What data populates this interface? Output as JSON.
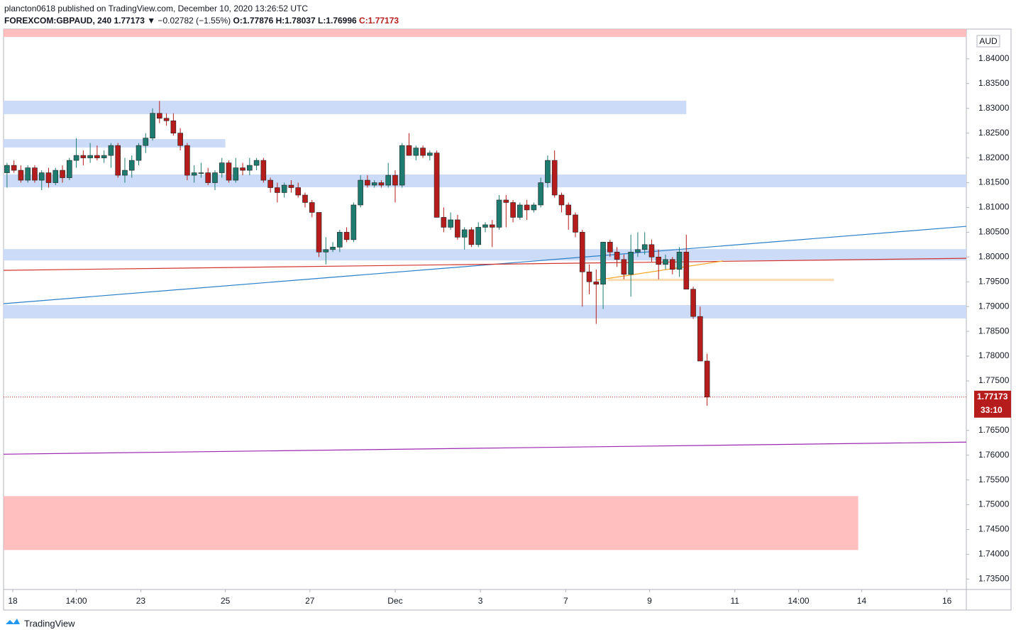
{
  "header": {
    "publisher": "plancton0618 published on TradingView.com, December 10, 2020 13:26:52 UTC",
    "symbol": "FOREXCOM:GBPAUD, 240",
    "last": "1.77173",
    "change": "▼ −0.02782 (−1.55%)",
    "open": "O:1.77876",
    "high": "H:1.78037",
    "low": "L:1.76996",
    "close": "C:1.77173"
  },
  "footer": {
    "brand": "TradingView"
  },
  "chart_data": {
    "type": "candlestick",
    "currency": "AUD",
    "last_price": 1.77173,
    "countdown": "33:10",
    "up_color": "#1e7b70",
    "down_color": "#b71c1c",
    "xlim": [
      -0.5,
      138.4
    ],
    "ylim": [
      1.7329,
      1.846
    ],
    "xticks": [
      {
        "value": 0.83,
        "label": "18"
      },
      {
        "value": 10.0,
        "label": "14:00"
      },
      {
        "value": 19.3,
        "label": "23"
      },
      {
        "value": 31.5,
        "label": "25"
      },
      {
        "value": 43.7,
        "label": "27"
      },
      {
        "value": 56.0,
        "label": "Dec"
      },
      {
        "value": 68.3,
        "label": "3"
      },
      {
        "value": 80.6,
        "label": "7"
      },
      {
        "value": 92.7,
        "label": "9"
      },
      {
        "value": 105.0,
        "label": "11"
      },
      {
        "value": 114.2,
        "label": "14:00"
      },
      {
        "value": 123.3,
        "label": "14"
      },
      {
        "value": 135.6,
        "label": "16"
      }
    ],
    "yticks": [
      {
        "value": 1.735,
        "label": "1.73500"
      },
      {
        "value": 1.74,
        "label": "1.74000"
      },
      {
        "value": 1.745,
        "label": "1.74500"
      },
      {
        "value": 1.75,
        "label": "1.75000"
      },
      {
        "value": 1.755,
        "label": "1.75500"
      },
      {
        "value": 1.76,
        "label": "1.76000"
      },
      {
        "value": 1.765,
        "label": "1.76500"
      },
      {
        "value": 1.775,
        "label": "1.77500"
      },
      {
        "value": 1.78,
        "label": "1.78000"
      },
      {
        "value": 1.785,
        "label": "1.78500"
      },
      {
        "value": 1.79,
        "label": "1.79000"
      },
      {
        "value": 1.795,
        "label": "1.79500"
      },
      {
        "value": 1.8,
        "label": "1.80000"
      },
      {
        "value": 1.805,
        "label": "1.80500"
      },
      {
        "value": 1.81,
        "label": "1.81000"
      },
      {
        "value": 1.815,
        "label": "1.81500"
      },
      {
        "value": 1.82,
        "label": "1.82000"
      },
      {
        "value": 1.825,
        "label": "1.82500"
      },
      {
        "value": 1.83,
        "label": "1.83000"
      },
      {
        "value": 1.835,
        "label": "1.83500"
      },
      {
        "value": 1.84,
        "label": "1.84000"
      }
    ],
    "zones": [
      {
        "top": 1.846,
        "bottom": 1.8444,
        "x_end": 138.4,
        "color": "#ffbcbc"
      },
      {
        "top": 1.83155,
        "bottom": 1.82883,
        "x_end": 98.0,
        "color": "#c9daf8"
      },
      {
        "top": 1.8238,
        "bottom": 1.8221,
        "x_end": 31.5,
        "color": "#c9daf8"
      },
      {
        "top": 1.81665,
        "bottom": 1.81407,
        "x_end": 138.4,
        "color": "#c9daf8"
      },
      {
        "top": 1.8016,
        "bottom": 1.7993,
        "x_end": 138.4,
        "color": "#c9daf8"
      },
      {
        "top": 1.7903,
        "bottom": 1.7876,
        "x_end": 138.4,
        "color": "#c9daf8"
      },
      {
        "top": 1.79563,
        "bottom": 1.79516,
        "x_start": 86.7,
        "x_end": 119.3,
        "color": "#fdd9b0"
      },
      {
        "top": 1.75175,
        "bottom": 1.74086,
        "x_end": 122.8,
        "color": "#ffbcbc"
      }
    ],
    "lines": [
      {
        "x": [
          -0.5,
          138.4
        ],
        "y": [
          1.79058,
          1.80619
        ],
        "color": "#2a7fc8"
      },
      {
        "x": [
          -0.5,
          138.4
        ],
        "y": [
          1.79731,
          1.79974
        ],
        "color": "#d3342f"
      },
      {
        "x": [
          -0.5,
          138.4
        ],
        "y": [
          1.7602,
          1.76264
        ],
        "color": "#9c27b0"
      },
      {
        "x": [
          85.1,
          103.3
        ],
        "y": [
          1.79534,
          1.7992
        ],
        "color": "#f5a623"
      }
    ],
    "open": [
      1.817,
      1.8185,
      1.8175,
      1.8155,
      1.818,
      1.8155,
      1.817,
      1.815,
      1.8175,
      1.816,
      1.8195,
      1.8205,
      1.82,
      1.8205,
      1.82,
      1.8205,
      1.8225,
      1.8165,
      1.8175,
      1.8195,
      1.8225,
      1.824,
      1.829,
      1.828,
      1.8275,
      1.825,
      1.8225,
      1.8165,
      1.817,
      1.817,
      1.815,
      1.817,
      1.819,
      1.8155,
      1.818,
      1.8175,
      1.8185,
      1.8195,
      1.8155,
      1.814,
      1.813,
      1.8145,
      1.814,
      1.8125,
      1.811,
      1.809,
      1.801,
      1.8015,
      1.802,
      1.805,
      1.8035,
      1.8105,
      1.8155,
      1.8145,
      1.815,
      1.8145,
      1.8165,
      1.8145,
      1.8225,
      1.8205,
      1.822,
      1.8205,
      1.821,
      1.808,
      1.806,
      1.8075,
      1.804,
      1.8055,
      1.8025,
      1.806,
      1.8065,
      1.806,
      1.8115,
      1.811,
      1.808,
      1.8105,
      1.8095,
      1.8105,
      1.815,
      1.8195,
      1.8125,
      1.8105,
      1.8085,
      1.805,
      1.797,
      1.795,
      1.7945,
      1.803,
      1.801,
      1.7995,
      1.7965,
      1.801,
      1.8015,
      1.8025,
      1.8,
      1.7985,
      1.7995,
      1.7975,
      1.801,
      1.7935,
      1.788,
      1.779
    ],
    "high": [
      1.819,
      1.8195,
      1.8185,
      1.8185,
      1.8185,
      1.8175,
      1.818,
      1.818,
      1.8185,
      1.82,
      1.824,
      1.8215,
      1.823,
      1.8225,
      1.8215,
      1.823,
      1.823,
      1.82,
      1.8205,
      1.823,
      1.825,
      1.83,
      1.8315,
      1.829,
      1.829,
      1.826,
      1.823,
      1.8185,
      1.819,
      1.818,
      1.8175,
      1.82,
      1.8195,
      1.82,
      1.819,
      1.82,
      1.82,
      1.82,
      1.816,
      1.815,
      1.815,
      1.8155,
      1.815,
      1.813,
      1.8115,
      1.809,
      1.804,
      1.803,
      1.8055,
      1.806,
      1.811,
      1.8165,
      1.8165,
      1.8155,
      1.8155,
      1.819,
      1.8175,
      1.823,
      1.825,
      1.8225,
      1.8225,
      1.8215,
      1.8215,
      1.81,
      1.809,
      1.8085,
      1.806,
      1.806,
      1.807,
      1.807,
      1.8075,
      1.8125,
      1.8125,
      1.8115,
      1.811,
      1.8115,
      1.811,
      1.816,
      1.8205,
      1.8215,
      1.813,
      1.811,
      1.809,
      1.8055,
      1.7985,
      1.7975,
      1.803,
      1.8035,
      1.802,
      1.8005,
      1.8045,
      1.805,
      1.805,
      1.8035,
      1.8015,
      1.8005,
      1.8,
      1.802,
      1.8045,
      1.794,
      1.79,
      1.7805
    ],
    "low": [
      1.814,
      1.817,
      1.815,
      1.815,
      1.815,
      1.8135,
      1.814,
      1.8145,
      1.815,
      1.8155,
      1.818,
      1.8185,
      1.819,
      1.8195,
      1.819,
      1.818,
      1.816,
      1.815,
      1.816,
      1.8185,
      1.821,
      1.8235,
      1.827,
      1.8265,
      1.8245,
      1.8215,
      1.8155,
      1.815,
      1.816,
      1.8145,
      1.8135,
      1.816,
      1.815,
      1.815,
      1.8165,
      1.8165,
      1.8175,
      1.815,
      1.813,
      1.811,
      1.812,
      1.813,
      1.812,
      1.81,
      1.808,
      1.8,
      1.7985,
      1.801,
      1.801,
      1.803,
      1.803,
      1.81,
      1.814,
      1.814,
      1.814,
      1.814,
      1.811,
      1.814,
      1.8215,
      1.8195,
      1.82,
      1.8195,
      1.808,
      1.805,
      1.8055,
      1.8035,
      1.8015,
      1.802,
      1.802,
      1.805,
      1.802,
      1.8055,
      1.806,
      1.807,
      1.8075,
      1.8075,
      1.809,
      1.81,
      1.814,
      1.812,
      1.809,
      1.8055,
      1.804,
      1.79,
      1.7925,
      1.7865,
      1.7895,
      1.8,
      1.798,
      1.7955,
      1.792,
      1.8,
      1.8005,
      1.799,
      1.7955,
      1.7975,
      1.7965,
      1.796,
      1.7935,
      1.7875,
      1.779,
      1.77
    ],
    "close": [
      1.8185,
      1.8175,
      1.8155,
      1.818,
      1.8155,
      1.817,
      1.815,
      1.8175,
      1.816,
      1.8195,
      1.8205,
      1.82,
      1.8205,
      1.82,
      1.8205,
      1.8225,
      1.8165,
      1.8175,
      1.8195,
      1.8225,
      1.824,
      1.829,
      1.828,
      1.8275,
      1.825,
      1.8225,
      1.8165,
      1.817,
      1.817,
      1.815,
      1.817,
      1.819,
      1.8155,
      1.818,
      1.8175,
      1.8185,
      1.8195,
      1.8155,
      1.814,
      1.813,
      1.8145,
      1.814,
      1.8125,
      1.811,
      1.809,
      1.801,
      1.8015,
      1.802,
      1.805,
      1.8035,
      1.8105,
      1.8155,
      1.8145,
      1.815,
      1.8145,
      1.8165,
      1.8145,
      1.8225,
      1.8205,
      1.822,
      1.8205,
      1.821,
      1.808,
      1.806,
      1.8075,
      1.804,
      1.8055,
      1.8025,
      1.806,
      1.8065,
      1.806,
      1.8115,
      1.811,
      1.808,
      1.8105,
      1.8095,
      1.8105,
      1.815,
      1.8195,
      1.8125,
      1.8105,
      1.8085,
      1.805,
      1.797,
      1.795,
      1.7945,
      1.803,
      1.801,
      1.7995,
      1.7965,
      1.801,
      1.8015,
      1.8025,
      1.8,
      1.7985,
      1.7995,
      1.7975,
      1.801,
      1.7935,
      1.788,
      1.779,
      1.77173
    ]
  }
}
